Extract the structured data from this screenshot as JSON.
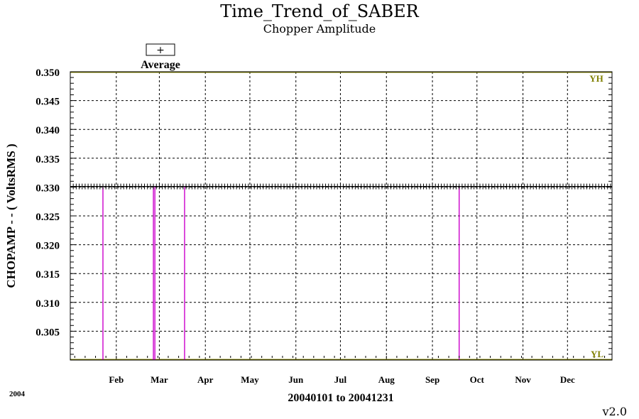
{
  "chart_data": {
    "type": "line",
    "title": "Time_Trend_of_SABER",
    "subtitle": "Chopper Amplitude",
    "ylabel": "CHOPAMP  - - ( VoltsRMS )",
    "xlabel": "20040101 to 20041231",
    "year_label": "2004",
    "version": "v2.0",
    "legend": {
      "symbol": "+",
      "label": "Average",
      "placement": "top-left"
    },
    "limit_labels": {
      "high": "YH",
      "low": "YL"
    },
    "xlim": [
      "2004-01-01",
      "2004-12-31"
    ],
    "ylim": [
      0.3,
      0.35
    ],
    "yticks": [
      "0.305",
      "0.310",
      "0.315",
      "0.320",
      "0.325",
      "0.330",
      "0.335",
      "0.340",
      "0.345",
      "0.350"
    ],
    "month_ticks": [
      {
        "label": "Feb",
        "date": "2004-02-01"
      },
      {
        "label": "Mar",
        "date": "2004-03-01"
      },
      {
        "label": "Apr",
        "date": "2004-04-01"
      },
      {
        "label": "May",
        "date": "2004-05-01"
      },
      {
        "label": "Jun",
        "date": "2004-06-01"
      },
      {
        "label": "Jul",
        "date": "2004-07-01"
      },
      {
        "label": "Aug",
        "date": "2004-08-01"
      },
      {
        "label": "Sep",
        "date": "2004-09-01"
      },
      {
        "label": "Oct",
        "date": "2004-10-01"
      },
      {
        "label": "Nov",
        "date": "2004-11-01"
      },
      {
        "label": "Dec",
        "date": "2004-12-01"
      }
    ],
    "grid": true,
    "series": [
      {
        "name": "Average",
        "marker": "+",
        "value": 0.3301,
        "range": [
          "2004-01-01",
          "2004-12-31"
        ],
        "frequency": "daily"
      }
    ],
    "dropouts": [
      "2004-01-23",
      "2004-02-26",
      "2004-02-27",
      "2004-03-18",
      "2004-09-19"
    ],
    "colors": {
      "limit_line": "#808000",
      "dropout": "#cc00cc",
      "series": "#000000",
      "grid": "#000000"
    }
  }
}
